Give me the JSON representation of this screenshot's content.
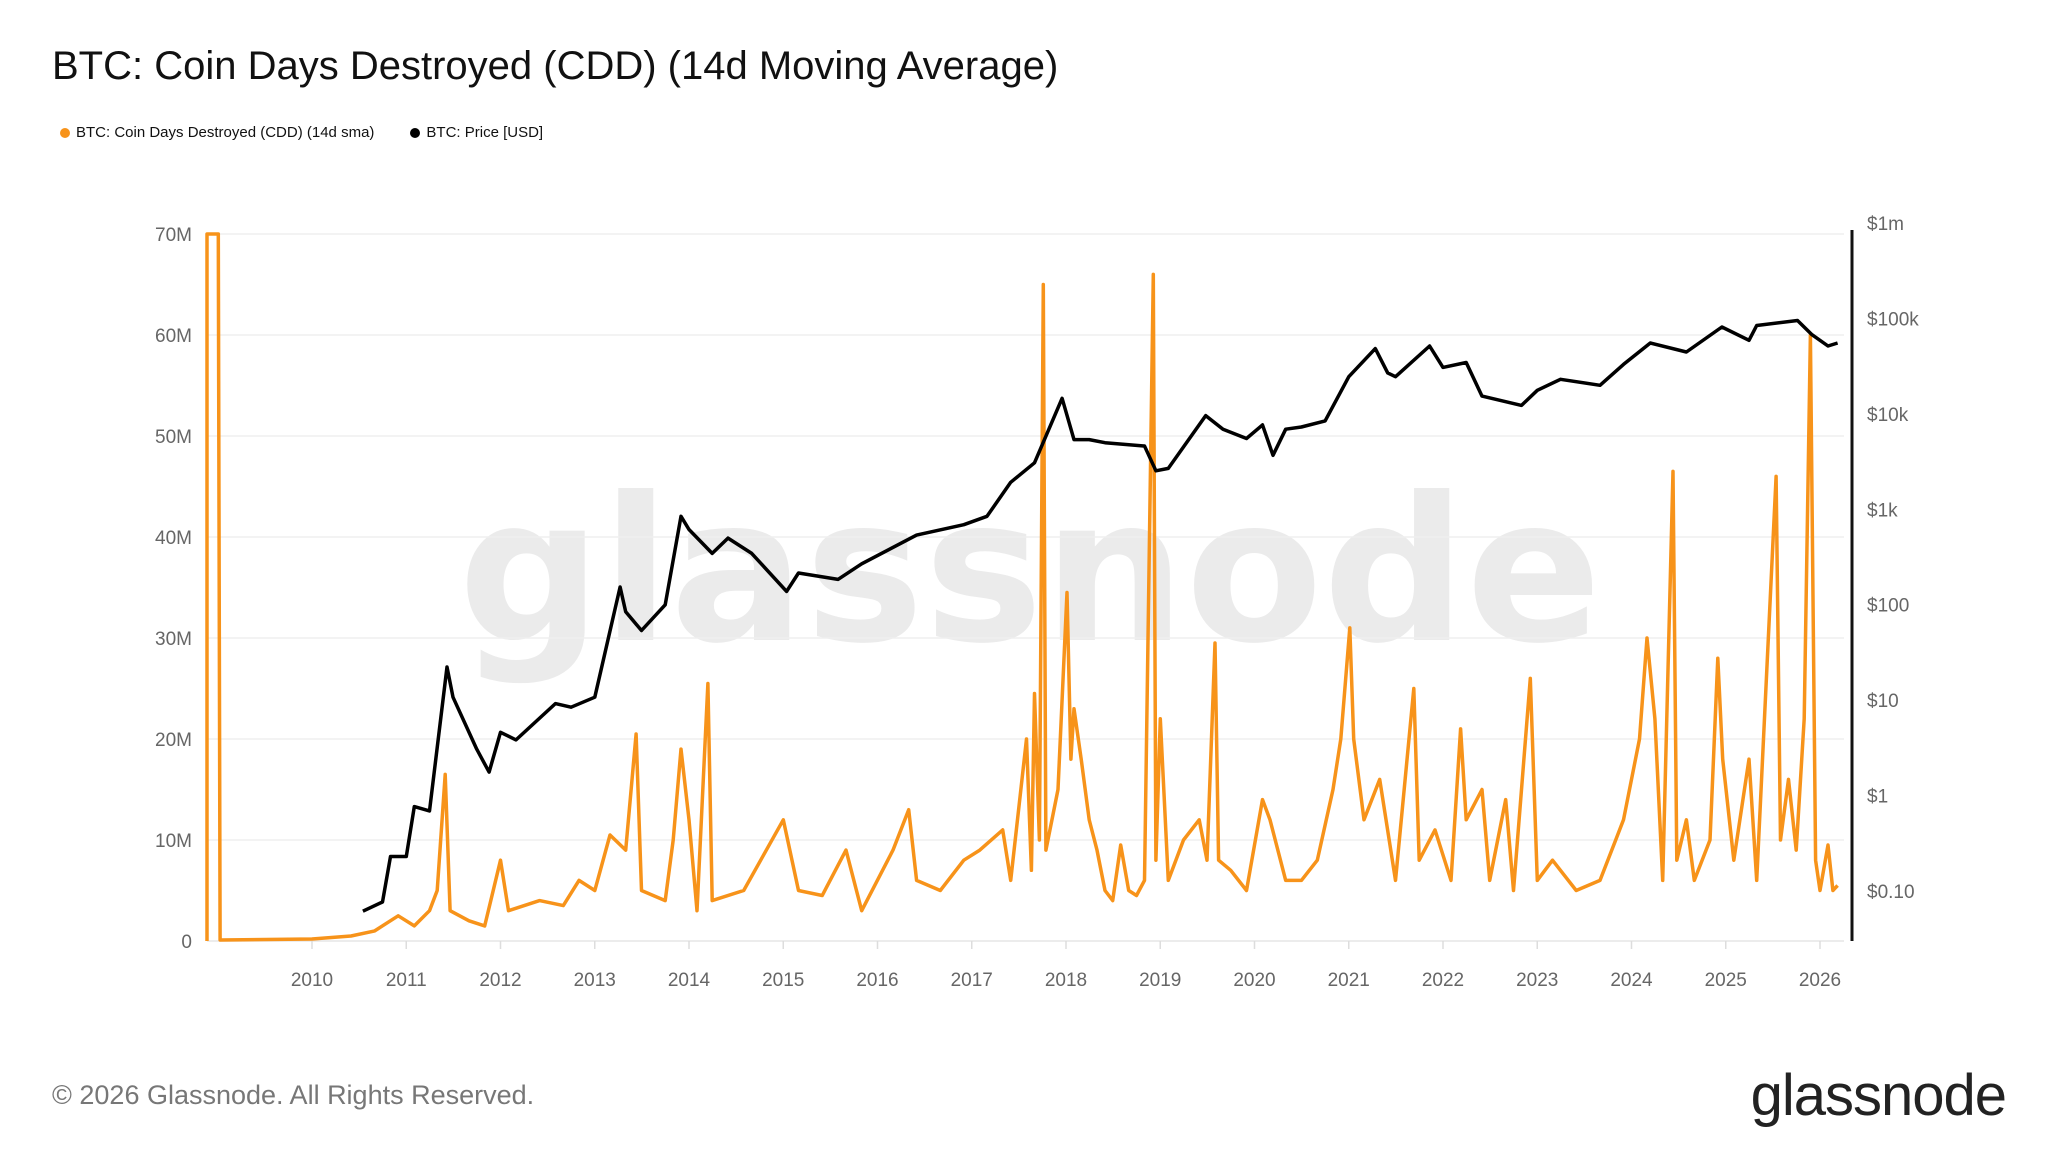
{
  "title": "BTC: Coin Days Destroyed (CDD) (14d Moving Average)",
  "legend": [
    {
      "label": "BTC: Coin Days Destroyed (CDD) (14d sma)",
      "color": "#f7931a"
    },
    {
      "label": "BTC: Price [USD]",
      "color": "#000000"
    }
  ],
  "watermark": "glassnode",
  "footer": {
    "copyright": "© 2026 Glassnode. All Rights Reserved.",
    "logo": "glassnode"
  },
  "chart_data": {
    "type": "line",
    "title": "BTC: Coin Days Destroyed (CDD) (14d Moving Average)",
    "grid": true,
    "legend_position": "top-left",
    "x_ticks": [
      "2010",
      "2011",
      "2012",
      "2013",
      "2014",
      "2015",
      "2016",
      "2017",
      "2018",
      "2019",
      "2020",
      "2021",
      "2022",
      "2023",
      "2024",
      "2025",
      "2026"
    ],
    "y_left": {
      "ticks": [
        "0",
        "10M",
        "20M",
        "30M",
        "40M",
        "50M",
        "60M",
        "70M"
      ],
      "range_millions": [
        0,
        70
      ]
    },
    "y_right": {
      "scale": "log",
      "ticks": [
        "$0.10",
        "$1",
        "$10",
        "$100",
        "$1k",
        "$10k",
        "$100k",
        "$1m"
      ],
      "range": [
        0.1,
        1000000
      ]
    },
    "series": [
      {
        "name": "BTC: Coin Days Destroyed (CDD) (14d sma)",
        "axis": "left",
        "color": "#f7931a",
        "unit": "millions",
        "points": [
          [
            "2009-01-03",
            70
          ],
          [
            "2009-01-10",
            0.1
          ],
          [
            "2010-01-01",
            0.2
          ],
          [
            "2010-06-01",
            0.5
          ],
          [
            "2010-09-01",
            1
          ],
          [
            "2010-12-01",
            2.5
          ],
          [
            "2011-02-01",
            1.5
          ],
          [
            "2011-04-01",
            3
          ],
          [
            "2011-05-01",
            5
          ],
          [
            "2011-06-01",
            16.5
          ],
          [
            "2011-06-20",
            3
          ],
          [
            "2011-09-01",
            2
          ],
          [
            "2011-11-01",
            1.5
          ],
          [
            "2012-01-01",
            8
          ],
          [
            "2012-02-01",
            3
          ],
          [
            "2012-06-01",
            4
          ],
          [
            "2012-09-01",
            3.5
          ],
          [
            "2012-11-01",
            6
          ],
          [
            "2013-01-01",
            5
          ],
          [
            "2013-03-01",
            10.5
          ],
          [
            "2013-05-01",
            9
          ],
          [
            "2013-06-10",
            20.5
          ],
          [
            "2013-07-01",
            5
          ],
          [
            "2013-10-01",
            4
          ],
          [
            "2013-11-01",
            10
          ],
          [
            "2013-12-01",
            19
          ],
          [
            "2014-01-01",
            12
          ],
          [
            "2014-02-01",
            3
          ],
          [
            "2014-03-15",
            25.5
          ],
          [
            "2014-04-01",
            4
          ],
          [
            "2014-08-01",
            5
          ],
          [
            "2015-01-01",
            12
          ],
          [
            "2015-03-01",
            5
          ],
          [
            "2015-06-01",
            4.5
          ],
          [
            "2015-09-01",
            9
          ],
          [
            "2015-11-01",
            3
          ],
          [
            "2016-03-01",
            9
          ],
          [
            "2016-05-01",
            13
          ],
          [
            "2016-06-01",
            6
          ],
          [
            "2016-09-01",
            5
          ],
          [
            "2016-12-01",
            8
          ],
          [
            "2017-02-01",
            9
          ],
          [
            "2017-05-01",
            11
          ],
          [
            "2017-06-01",
            6
          ],
          [
            "2017-08-01",
            20
          ],
          [
            "2017-08-20",
            7
          ],
          [
            "2017-09-01",
            24.5
          ],
          [
            "2017-09-20",
            10
          ],
          [
            "2017-10-05",
            65
          ],
          [
            "2017-10-15",
            9
          ],
          [
            "2017-12-01",
            15
          ],
          [
            "2018-01-05",
            34.5
          ],
          [
            "2018-01-20",
            18
          ],
          [
            "2018-02-01",
            23
          ],
          [
            "2018-03-01",
            18
          ],
          [
            "2018-04-01",
            12
          ],
          [
            "2018-05-01",
            9
          ],
          [
            "2018-06-01",
            5
          ],
          [
            "2018-07-01",
            4
          ],
          [
            "2018-08-01",
            9.5
          ],
          [
            "2018-09-01",
            5
          ],
          [
            "2018-10-01",
            4.5
          ],
          [
            "2018-11-01",
            6
          ],
          [
            "2018-12-05",
            66
          ],
          [
            "2018-12-15",
            8
          ],
          [
            "2019-01-01",
            22
          ],
          [
            "2019-02-01",
            6
          ],
          [
            "2019-04-01",
            10
          ],
          [
            "2019-06-01",
            12
          ],
          [
            "2019-07-01",
            8
          ],
          [
            "2019-08-01",
            29.5
          ],
          [
            "2019-08-15",
            8
          ],
          [
            "2019-10-01",
            7
          ],
          [
            "2019-12-01",
            5
          ],
          [
            "2020-02-01",
            14
          ],
          [
            "2020-03-01",
            12
          ],
          [
            "2020-05-01",
            6
          ],
          [
            "2020-07-01",
            6
          ],
          [
            "2020-09-01",
            8
          ],
          [
            "2020-11-01",
            15
          ],
          [
            "2020-12-01",
            20
          ],
          [
            "2021-01-05",
            31
          ],
          [
            "2021-01-20",
            20
          ],
          [
            "2021-03-01",
            12
          ],
          [
            "2021-05-01",
            16
          ],
          [
            "2021-07-01",
            6
          ],
          [
            "2021-09-10",
            25
          ],
          [
            "2021-10-01",
            8
          ],
          [
            "2021-12-01",
            11
          ],
          [
            "2022-02-01",
            6
          ],
          [
            "2022-03-10",
            21
          ],
          [
            "2022-04-01",
            12
          ],
          [
            "2022-06-01",
            15
          ],
          [
            "2022-07-01",
            6
          ],
          [
            "2022-09-01",
            14
          ],
          [
            "2022-10-01",
            5
          ],
          [
            "2022-12-05",
            26
          ],
          [
            "2023-01-01",
            6
          ],
          [
            "2023-03-01",
            8
          ],
          [
            "2023-06-01",
            5
          ],
          [
            "2023-09-01",
            6
          ],
          [
            "2023-11-01",
            10
          ],
          [
            "2023-12-01",
            12
          ],
          [
            "2024-02-01",
            20
          ],
          [
            "2024-03-01",
            30
          ],
          [
            "2024-04-01",
            22
          ],
          [
            "2024-05-01",
            6
          ],
          [
            "2024-06-10",
            46.5
          ],
          [
            "2024-06-25",
            8
          ],
          [
            "2024-08-01",
            12
          ],
          [
            "2024-09-01",
            6
          ],
          [
            "2024-11-01",
            10
          ],
          [
            "2024-12-01",
            28
          ],
          [
            "2024-12-20",
            18
          ],
          [
            "2025-02-01",
            8
          ],
          [
            "2025-04-01",
            18
          ],
          [
            "2025-05-01",
            6
          ],
          [
            "2025-07-15",
            46
          ],
          [
            "2025-08-01",
            10
          ],
          [
            "2025-09-01",
            16
          ],
          [
            "2025-10-01",
            9
          ],
          [
            "2025-11-01",
            22
          ],
          [
            "2025-11-25",
            60
          ],
          [
            "2025-12-15",
            8
          ],
          [
            "2026-01-01",
            5
          ],
          [
            "2026-02-01",
            9.5
          ],
          [
            "2026-02-20",
            5
          ],
          [
            "2026-03-10",
            5.5
          ]
        ]
      },
      {
        "name": "BTC: Price [USD]",
        "axis": "right",
        "color": "#000000",
        "points": [
          [
            "2010-07-17",
            0.08
          ],
          [
            "2010-10-01",
            0.1
          ],
          [
            "2010-11-01",
            0.3
          ],
          [
            "2011-01-01",
            0.3
          ],
          [
            "2011-02-01",
            1
          ],
          [
            "2011-04-01",
            0.9
          ],
          [
            "2011-06-08",
            29
          ],
          [
            "2011-07-01",
            14
          ],
          [
            "2011-10-01",
            4
          ],
          [
            "2011-11-18",
            2.3
          ],
          [
            "2012-01-01",
            6
          ],
          [
            "2012-03-01",
            5
          ],
          [
            "2012-08-01",
            12
          ],
          [
            "2012-10-01",
            11
          ],
          [
            "2013-01-01",
            14
          ],
          [
            "2013-04-09",
            200
          ],
          [
            "2013-05-01",
            110
          ],
          [
            "2013-07-01",
            70
          ],
          [
            "2013-10-01",
            130
          ],
          [
            "2013-12-01",
            1100
          ],
          [
            "2014-01-01",
            800
          ],
          [
            "2014-04-01",
            450
          ],
          [
            "2014-06-01",
            650
          ],
          [
            "2014-09-01",
            450
          ],
          [
            "2015-01-14",
            180
          ],
          [
            "2015-03-01",
            280
          ],
          [
            "2015-08-01",
            240
          ],
          [
            "2015-11-01",
            350
          ],
          [
            "2016-06-01",
            700
          ],
          [
            "2016-12-01",
            900
          ],
          [
            "2017-03-01",
            1100
          ],
          [
            "2017-06-01",
            2500
          ],
          [
            "2017-09-01",
            4000
          ],
          [
            "2017-12-17",
            19000
          ],
          [
            "2018-02-01",
            7000
          ],
          [
            "2018-04-01",
            7000
          ],
          [
            "2018-06-01",
            6500
          ],
          [
            "2018-11-01",
            6000
          ],
          [
            "2018-12-15",
            3300
          ],
          [
            "2019-02-01",
            3500
          ],
          [
            "2019-06-26",
            12500
          ],
          [
            "2019-09-01",
            9000
          ],
          [
            "2019-12-01",
            7200
          ],
          [
            "2020-02-01",
            10000
          ],
          [
            "2020-03-13",
            4800
          ],
          [
            "2020-05-01",
            9000
          ],
          [
            "2020-07-01",
            9500
          ],
          [
            "2020-10-01",
            11000
          ],
          [
            "2021-01-01",
            32000
          ],
          [
            "2021-04-14",
            63000
          ],
          [
            "2021-06-01",
            35000
          ],
          [
            "2021-07-01",
            32000
          ],
          [
            "2021-11-10",
            67000
          ],
          [
            "2022-01-01",
            40000
          ],
          [
            "2022-04-01",
            45000
          ],
          [
            "2022-06-01",
            20000
          ],
          [
            "2022-11-01",
            16000
          ],
          [
            "2023-01-01",
            23000
          ],
          [
            "2023-04-01",
            30000
          ],
          [
            "2023-09-01",
            26000
          ],
          [
            "2023-12-01",
            43000
          ],
          [
            "2024-03-14",
            72000
          ],
          [
            "2024-08-01",
            58000
          ],
          [
            "2024-12-17",
            106000
          ],
          [
            "2025-04-01",
            77000
          ],
          [
            "2025-05-01",
            110000
          ],
          [
            "2025-10-06",
            124000
          ],
          [
            "2025-12-01",
            88000
          ],
          [
            "2026-02-01",
            67000
          ],
          [
            "2026-03-10",
            72000
          ]
        ]
      }
    ]
  }
}
